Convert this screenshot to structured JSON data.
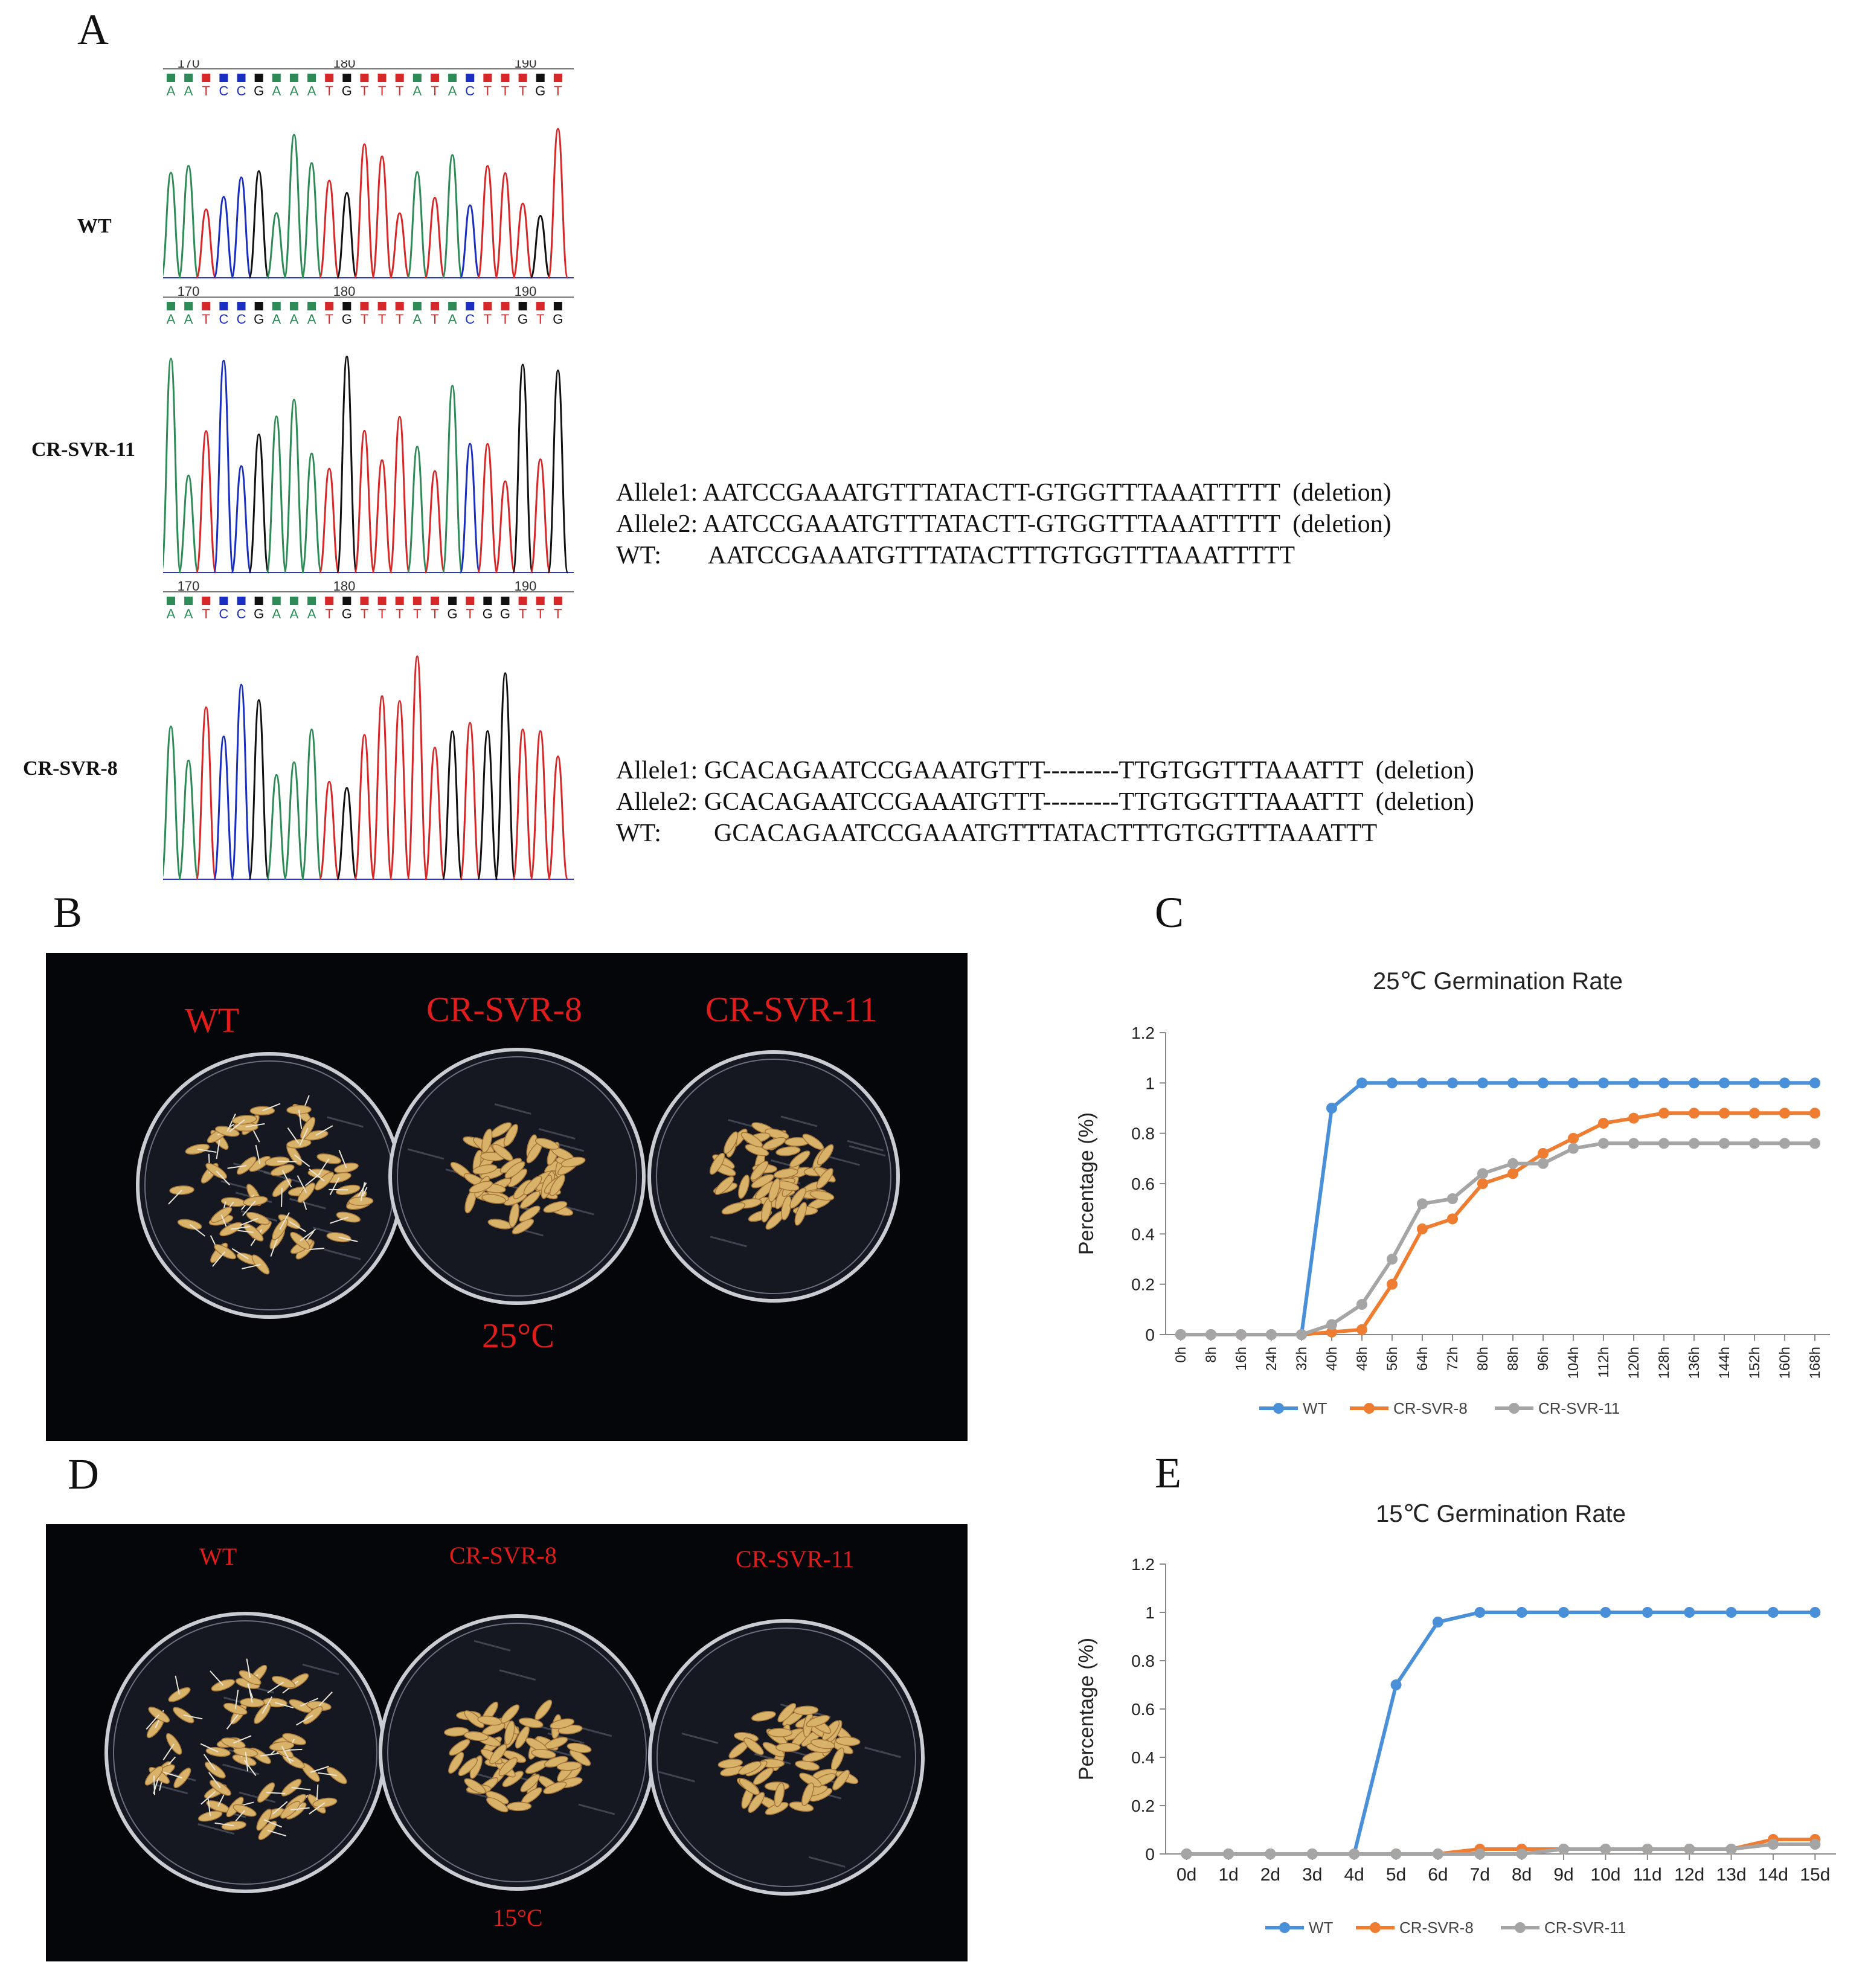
{
  "panel_a": {
    "letter": "A",
    "traces": [
      {
        "label": "WT",
        "ticks": [
          "170",
          "180",
          "190"
        ],
        "bases": "AATCCGAAATGTTTATACTTTGT"
      },
      {
        "label": "CR-SVR-11",
        "ticks": [
          "170",
          "180",
          "190"
        ],
        "bases": "AATCCGAAATGTTTATACTTGTG"
      },
      {
        "label": "CR-SVR-8",
        "ticks": [
          "170",
          "180",
          "190"
        ],
        "bases": "AATCCGAAATGTTTTTGTGGTTT"
      }
    ],
    "alignments": [
      {
        "lines": [
          {
            "name": "Allele1:",
            "seq": "AATCCGAAATGTTTATACTT-GTGGTTTAAATTTTT",
            "note": "(deletion)"
          },
          {
            "name": "Allele2:",
            "seq": "AATCCGAAATGTTTATACTT-GTGGTTTAAATTTTT",
            "note": "(deletion)"
          },
          {
            "name": "WT:",
            "seq": "AATCCGAAATGTTTATACTTTGTGGTTTAAATTTTT",
            "note": ""
          }
        ]
      },
      {
        "lines": [
          {
            "name": "Allele1:",
            "seq": "GCACAGAATCCGAAATGTTT---------TTGTGGTTTAAATTT",
            "note": "(deletion)"
          },
          {
            "name": "Allele2:",
            "seq": "GCACAGAATCCGAAATGTTT---------TTGTGGTTTAAATTT",
            "note": "(deletion)"
          },
          {
            "name": "WT:",
            "seq": "GCACAGAATCCGAAATGTTTATACTTTGTGGTTTAAATTT",
            "note": ""
          }
        ]
      }
    ]
  },
  "panel_b": {
    "letter": "B",
    "labels": [
      "WT",
      "CR-SVR-8",
      "CR-SVR-11"
    ],
    "temp": "25°C"
  },
  "panel_d": {
    "letter": "D",
    "labels": [
      "WT",
      "CR-SVR-8",
      "CR-SVR-11"
    ],
    "temp": "15°C"
  },
  "panel_c": {
    "letter": "C"
  },
  "panel_e": {
    "letter": "E"
  },
  "colors": {
    "wt": "#4a90d9",
    "svr8": "#ef7d31",
    "svr11": "#a5a5a5",
    "trace_a": "#2e8b57",
    "trace_c": "#1a2fbf",
    "trace_g": "#111111",
    "trace_t": "#d62828"
  },
  "chart_data": [
    {
      "type": "line",
      "title": "25℃ Germination Rate",
      "ylabel": "Percentage (%)",
      "xlabel": "",
      "ylim": [
        0,
        1.2
      ],
      "yticks": [
        "0",
        "0.2",
        "0.4",
        "0.6",
        "0.8",
        "1",
        "1.2"
      ],
      "categories": [
        "0h",
        "8h",
        "16h",
        "24h",
        "32h",
        "40h",
        "48h",
        "56h",
        "64h",
        "72h",
        "80h",
        "88h",
        "96h",
        "104h",
        "112h",
        "120h",
        "128h",
        "136h",
        "144h",
        "152h",
        "160h",
        "168h"
      ],
      "series": [
        {
          "name": "WT",
          "values": [
            0,
            0,
            0,
            0,
            0,
            0.9,
            1,
            1,
            1,
            1,
            1,
            1,
            1,
            1,
            1,
            1,
            1,
            1,
            1,
            1,
            1,
            1
          ]
        },
        {
          "name": "CR-SVR-8",
          "values": [
            0,
            0,
            0,
            0,
            0,
            0.01,
            0.02,
            0.2,
            0.42,
            0.46,
            0.6,
            0.64,
            0.72,
            0.78,
            0.84,
            0.86,
            0.88,
            0.88,
            0.88,
            0.88,
            0.88,
            0.88
          ]
        },
        {
          "name": "CR-SVR-11",
          "values": [
            0,
            0,
            0,
            0,
            0,
            0.04,
            0.12,
            0.3,
            0.52,
            0.54,
            0.64,
            0.68,
            0.68,
            0.74,
            0.76,
            0.76,
            0.76,
            0.76,
            0.76,
            0.76,
            0.76,
            0.76
          ]
        }
      ],
      "legend": "bottom"
    },
    {
      "type": "line",
      "title": "15℃ Germination Rate",
      "ylabel": "Percentage (%)",
      "xlabel": "",
      "ylim": [
        0,
        1.2
      ],
      "yticks": [
        "0",
        "0.2",
        "0.4",
        "0.6",
        "0.8",
        "1",
        "1.2"
      ],
      "categories": [
        "0d",
        "1d",
        "2d",
        "3d",
        "4d",
        "5d",
        "6d",
        "7d",
        "8d",
        "9d",
        "10d",
        "11d",
        "12d",
        "13d",
        "14d",
        "15d"
      ],
      "series": [
        {
          "name": "WT",
          "values": [
            0,
            0,
            0,
            0,
            0,
            0.7,
            0.96,
            1,
            1,
            1,
            1,
            1,
            1,
            1,
            1,
            1
          ]
        },
        {
          "name": "CR-SVR-8",
          "values": [
            0,
            0,
            0,
            0,
            0,
            0,
            0,
            0.02,
            0.02,
            0.02,
            0.02,
            0.02,
            0.02,
            0.02,
            0.06,
            0.06
          ]
        },
        {
          "name": "CR-SVR-11",
          "values": [
            0,
            0,
            0,
            0,
            0,
            0,
            0,
            0,
            0,
            0.02,
            0.02,
            0.02,
            0.02,
            0.02,
            0.04,
            0.04
          ]
        }
      ],
      "legend": "bottom"
    }
  ]
}
